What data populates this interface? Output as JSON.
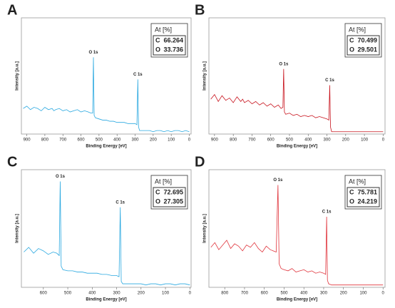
{
  "chart_data": [
    {
      "type": "line",
      "title": "A",
      "xlabel": "Binding Energy [eV]",
      "ylabel": "Intensity [a.u.]",
      "color": "#29a8e0",
      "xlim": [
        930,
        -10
      ],
      "xticks": [
        900,
        800,
        700,
        600,
        500,
        400,
        300,
        200,
        100,
        0
      ],
      "ylim": [
        0,
        100
      ],
      "annotations": [
        "O 1s",
        "C 1s"
      ],
      "inset": {
        "header": "At [%]",
        "rows": [
          [
            "C",
            66.264
          ],
          [
            "O",
            33.736
          ]
        ]
      },
      "x": [
        920,
        900,
        880,
        860,
        840,
        820,
        800,
        780,
        760,
        750,
        740,
        720,
        700,
        680,
        660,
        640,
        620,
        600,
        580,
        560,
        545,
        535,
        531,
        527,
        520,
        500,
        480,
        460,
        440,
        420,
        400,
        380,
        360,
        340,
        320,
        300,
        290,
        285,
        281,
        275,
        260,
        240,
        220,
        200,
        180,
        160,
        140,
        120,
        100,
        80,
        60,
        40,
        20,
        0
      ],
      "values": [
        22,
        24,
        21,
        23,
        22,
        20,
        23,
        21,
        22,
        20,
        21,
        22,
        20,
        21,
        19,
        20,
        21,
        19,
        20,
        19,
        18,
        18,
        66,
        16,
        14,
        13,
        12,
        12,
        11,
        11,
        10,
        10,
        10,
        9,
        9,
        9,
        8,
        47,
        6,
        3,
        3,
        3,
        3,
        2,
        3,
        3,
        2,
        3,
        2,
        3,
        3,
        2,
        3,
        2
      ]
    },
    {
      "type": "line",
      "title": "B",
      "xlabel": "Binding Energy [eV]",
      "ylabel": "Intensity [a.u.]",
      "color": "#c8141e",
      "xlim": [
        930,
        -10
      ],
      "xticks": [
        900,
        800,
        700,
        600,
        500,
        400,
        300,
        200,
        100,
        0
      ],
      "ylim": [
        0,
        100
      ],
      "annotations": [
        "O 1s",
        "C 1s"
      ],
      "inset": {
        "header": "At [%]",
        "rows": [
          [
            "C",
            70.499
          ],
          [
            "O",
            29.501
          ]
        ]
      },
      "x": [
        920,
        900,
        880,
        860,
        840,
        820,
        800,
        780,
        760,
        750,
        740,
        720,
        700,
        680,
        660,
        640,
        620,
        600,
        580,
        560,
        545,
        535,
        531,
        527,
        520,
        500,
        480,
        460,
        440,
        420,
        400,
        380,
        360,
        340,
        320,
        300,
        290,
        285,
        281,
        275,
        260,
        240,
        220,
        200,
        180,
        160,
        140,
        120,
        100,
        80,
        60,
        40,
        20,
        0
      ],
      "values": [
        30,
        34,
        28,
        33,
        29,
        31,
        27,
        32,
        28,
        30,
        27,
        29,
        26,
        28,
        25,
        27,
        24,
        26,
        23,
        25,
        22,
        23,
        56,
        19,
        17,
        18,
        16,
        17,
        15,
        16,
        15,
        16,
        14,
        15,
        14,
        13,
        12,
        42,
        6,
        2,
        2,
        2,
        2,
        2,
        2,
        2,
        2,
        2,
        2,
        2,
        2,
        2,
        2,
        2
      ]
    },
    {
      "type": "line",
      "title": "C",
      "xlabel": "Binding Energy [eV]",
      "ylabel": "Intensity [a.u.]",
      "color": "#29a8e0",
      "xlim": [
        690,
        -5
      ],
      "xticks": [
        600,
        500,
        400,
        300,
        200,
        100,
        0
      ],
      "ylim": [
        0,
        100
      ],
      "annotations": [
        "O 1s",
        "C 1s"
      ],
      "inset": {
        "header": "At [%]",
        "rows": [
          [
            "C",
            72.695
          ],
          [
            "O",
            27.305
          ]
        ]
      },
      "x": [
        680,
        660,
        640,
        620,
        600,
        580,
        560,
        545,
        535,
        531,
        527,
        520,
        500,
        480,
        460,
        440,
        420,
        400,
        380,
        360,
        340,
        320,
        300,
        290,
        285,
        281,
        275,
        260,
        240,
        220,
        200,
        180,
        160,
        140,
        120,
        100,
        80,
        60,
        40,
        20,
        0
      ],
      "values": [
        30,
        34,
        29,
        33,
        31,
        28,
        30,
        29,
        27,
        90,
        18,
        15,
        14,
        14,
        13,
        13,
        12,
        12,
        12,
        11,
        11,
        10,
        10,
        9,
        68,
        5,
        3,
        3,
        3,
        3,
        3,
        2,
        3,
        3,
        2,
        3,
        3,
        2,
        3,
        3,
        2
      ]
    },
    {
      "type": "line",
      "title": "D",
      "xlabel": "Binding Energy [eV]",
      "ylabel": "Intensity [a.u.]",
      "color": "#e0343c",
      "xlim": [
        880,
        -10
      ],
      "xticks": [
        800,
        700,
        600,
        500,
        400,
        300,
        200,
        100,
        0
      ],
      "ylim": [
        0,
        100
      ],
      "annotations": [
        "O 1s",
        "C 1s"
      ],
      "inset": {
        "header": "At [%]",
        "rows": [
          [
            "C",
            75.781
          ],
          [
            "O",
            24.219
          ]
        ]
      },
      "x": [
        870,
        850,
        830,
        810,
        790,
        770,
        750,
        730,
        710,
        690,
        670,
        650,
        630,
        610,
        590,
        570,
        555,
        540,
        531,
        525,
        515,
        500,
        480,
        460,
        440,
        420,
        400,
        380,
        360,
        340,
        320,
        300,
        290,
        285,
        281,
        275,
        260,
        240,
        220,
        200,
        180,
        160,
        140,
        120,
        100,
        80,
        60,
        40,
        20,
        0
      ],
      "values": [
        34,
        38,
        32,
        36,
        40,
        33,
        37,
        35,
        31,
        36,
        34,
        38,
        33,
        30,
        35,
        32,
        31,
        30,
        87,
        20,
        16,
        15,
        14,
        16,
        13,
        14,
        15,
        13,
        14,
        12,
        13,
        12,
        11,
        60,
        6,
        3,
        2,
        2,
        2,
        2,
        2,
        2,
        2,
        2,
        2,
        2,
        2,
        2,
        2,
        2
      ]
    }
  ]
}
